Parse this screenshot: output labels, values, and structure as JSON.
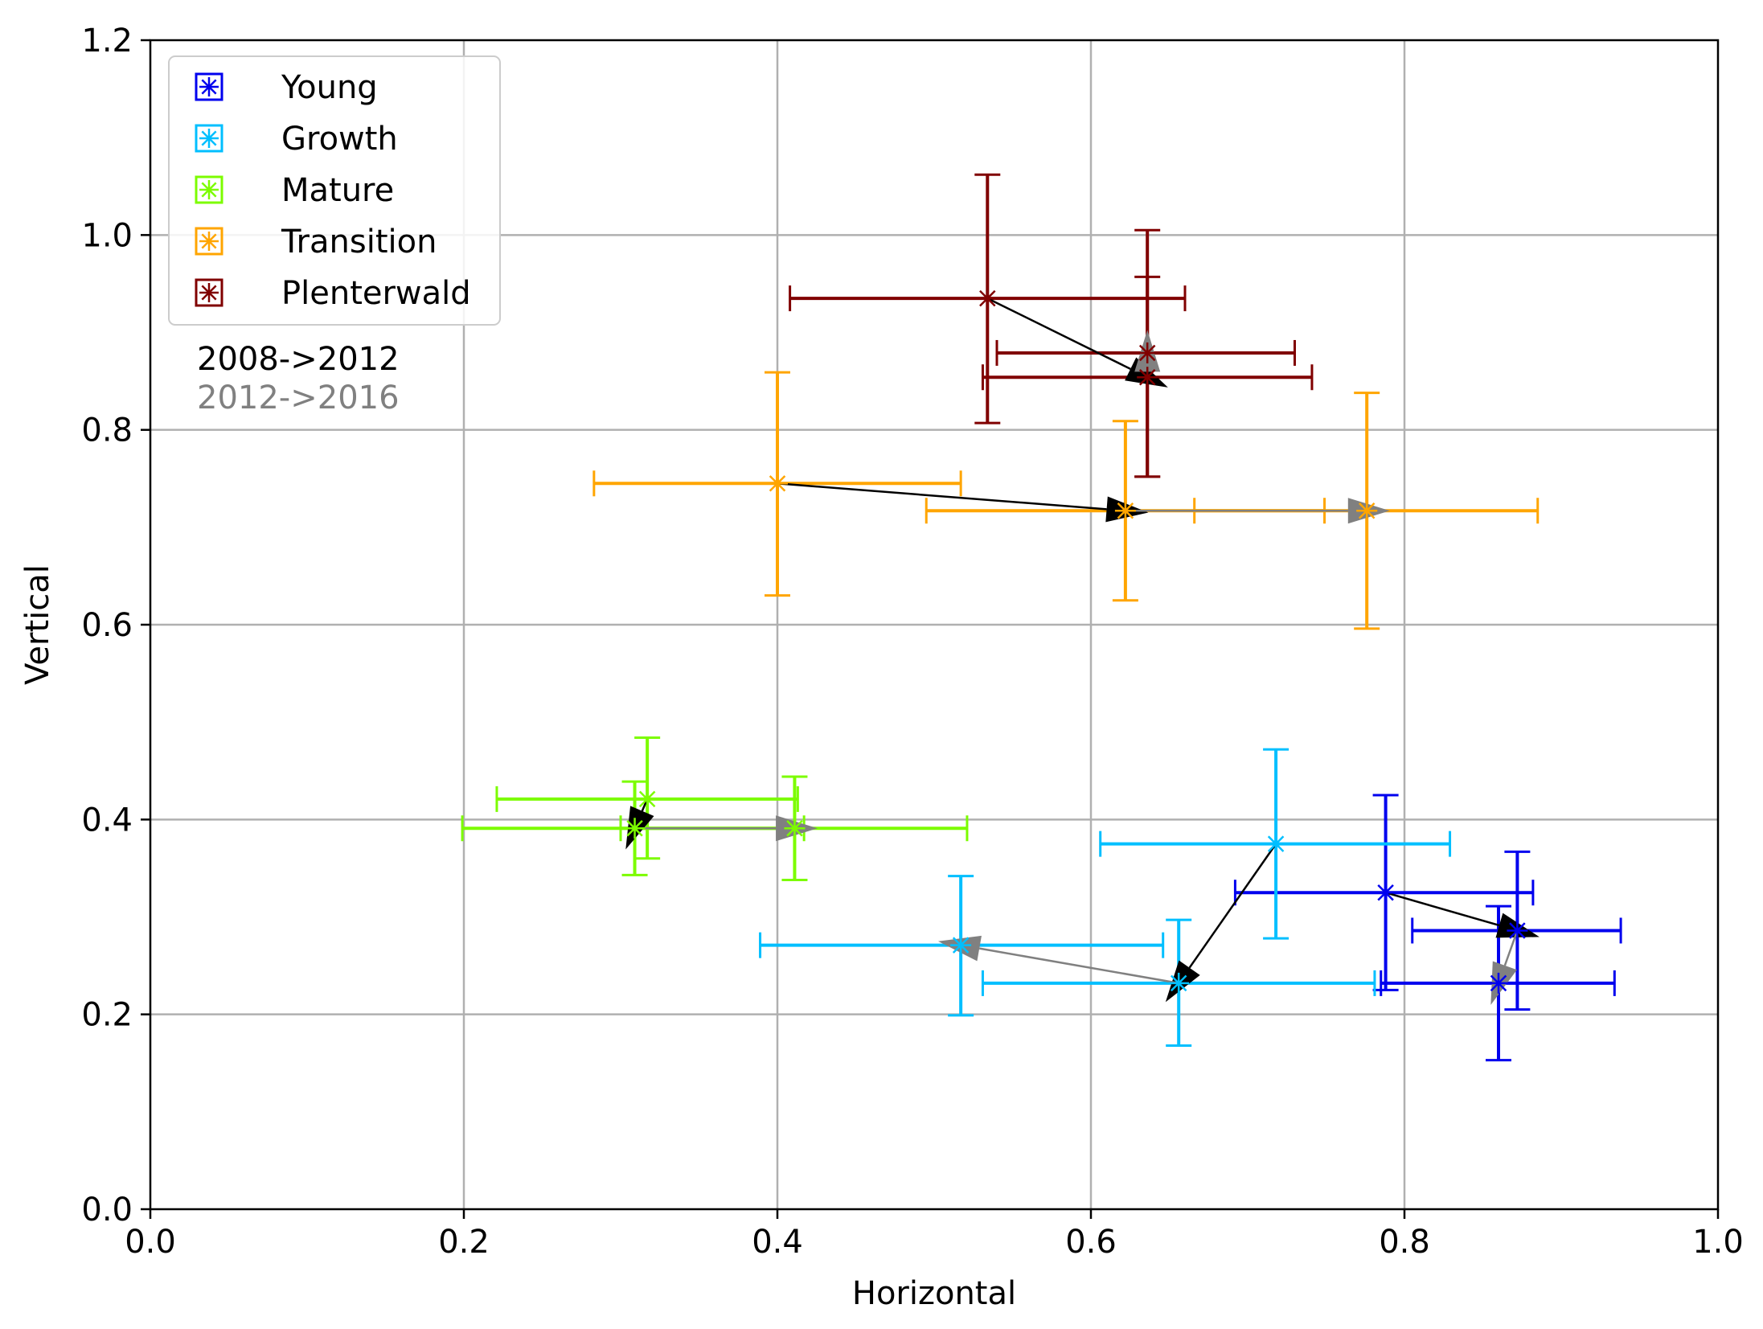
{
  "chart_data": {
    "type": "scatter",
    "title": "",
    "xlabel": "Horizontal",
    "ylabel": "Vertical",
    "xlim": [
      0.0,
      1.0
    ],
    "ylim": [
      0.0,
      1.2
    ],
    "xticks": [
      "0.0",
      "0.2",
      "0.4",
      "0.6",
      "0.8",
      "1.0"
    ],
    "yticks": [
      "0.0",
      "0.2",
      "0.4",
      "0.6",
      "0.8",
      "1.0",
      "1.2"
    ],
    "grid": true,
    "legend_position": "top-left",
    "arrow_legend": [
      {
        "label": "2008->2012",
        "color": "#000000"
      },
      {
        "label": "2012->2016",
        "color": "#808080"
      }
    ],
    "series": [
      {
        "name": "Young",
        "color": "#0000ee",
        "points": [
          {
            "year": "2008",
            "x": 0.788,
            "y": 0.325,
            "xerr": [
              0.692,
              0.882
            ],
            "yerr": [
              0.225,
              0.425
            ]
          },
          {
            "year": "2012",
            "x": 0.872,
            "y": 0.286,
            "xerr": [
              0.805,
              0.938
            ],
            "yerr": [
              0.205,
              0.367
            ]
          },
          {
            "year": "2016",
            "x": 0.86,
            "y": 0.232,
            "xerr": [
              0.785,
              0.934
            ],
            "yerr": [
              0.153,
              0.311
            ]
          }
        ]
      },
      {
        "name": "Growth",
        "color": "#00bfff",
        "points": [
          {
            "year": "2008",
            "x": 0.718,
            "y": 0.375,
            "xerr": [
              0.606,
              0.829
            ],
            "yerr": [
              0.278,
              0.472
            ]
          },
          {
            "year": "2012",
            "x": 0.656,
            "y": 0.232,
            "xerr": [
              0.531,
              0.781
            ],
            "yerr": [
              0.168,
              0.297
            ]
          },
          {
            "year": "2016",
            "x": 0.517,
            "y": 0.271,
            "xerr": [
              0.389,
              0.646
            ],
            "yerr": [
              0.199,
              0.342
            ]
          }
        ]
      },
      {
        "name": "Mature",
        "color": "#7cfc00",
        "points": [
          {
            "year": "2008",
            "x": 0.317,
            "y": 0.421,
            "xerr": [
              0.221,
              0.413
            ],
            "yerr": [
              0.36,
              0.484
            ]
          },
          {
            "year": "2012",
            "x": 0.309,
            "y": 0.391,
            "xerr": [
              0.199,
              0.417
            ],
            "yerr": [
              0.343,
              0.439
            ]
          },
          {
            "year": "2016",
            "x": 0.411,
            "y": 0.391,
            "xerr": [
              0.3,
              0.521
            ],
            "yerr": [
              0.338,
              0.444
            ]
          }
        ]
      },
      {
        "name": "Transition",
        "color": "#ffa500",
        "points": [
          {
            "year": "2008",
            "x": 0.4,
            "y": 0.745,
            "xerr": [
              0.283,
              0.517
            ],
            "yerr": [
              0.63,
              0.859
            ]
          },
          {
            "year": "2012",
            "x": 0.622,
            "y": 0.717,
            "xerr": [
              0.495,
              0.749
            ],
            "yerr": [
              0.625,
              0.809
            ]
          },
          {
            "year": "2016",
            "x": 0.776,
            "y": 0.717,
            "xerr": [
              0.666,
              0.885
            ],
            "yerr": [
              0.596,
              0.838
            ]
          }
        ]
      },
      {
        "name": "Plenterwald",
        "color": "#800000",
        "points": [
          {
            "year": "2008",
            "x": 0.534,
            "y": 0.935,
            "xerr": [
              0.408,
              0.66
            ],
            "yerr": [
              0.807,
              1.062
            ]
          },
          {
            "year": "2012",
            "x": 0.636,
            "y": 0.854,
            "xerr": [
              0.531,
              0.741
            ],
            "yerr": [
              0.752,
              0.957
            ]
          },
          {
            "year": "2016",
            "x": 0.636,
            "y": 0.879,
            "xerr": [
              0.54,
              0.73
            ],
            "yerr": [
              0.752,
              1.005
            ]
          }
        ]
      }
    ]
  }
}
